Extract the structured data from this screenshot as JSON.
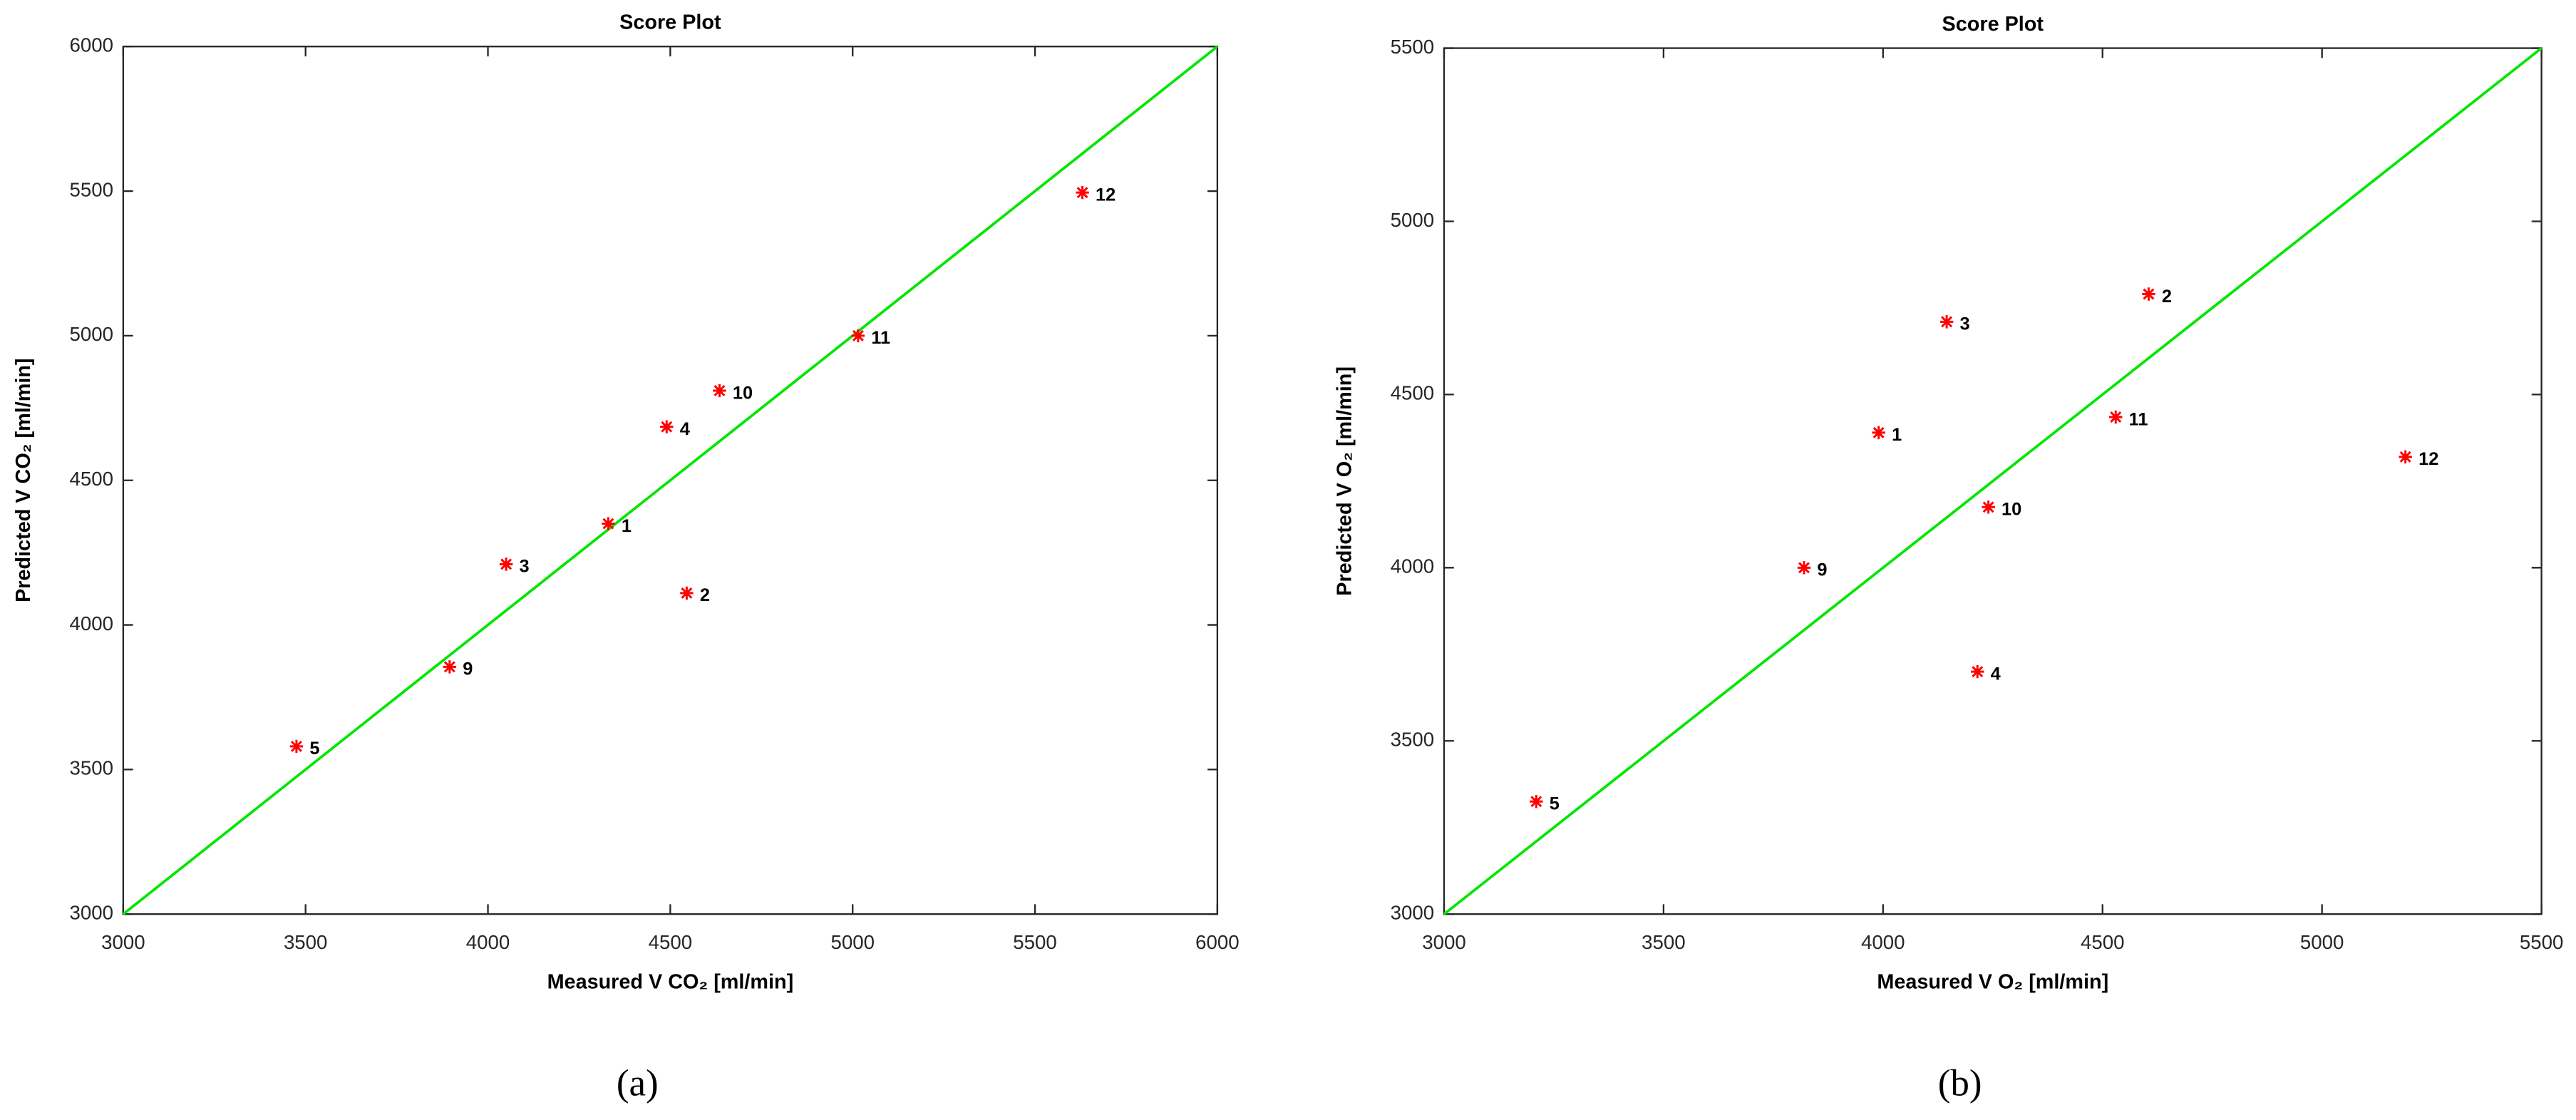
{
  "chart_data": [
    {
      "type": "scatter",
      "title": "Score Plot",
      "x_label": "Measured V CO₂ [ml/min]",
      "y_label": "Predicted V CO₂ [ml/min]",
      "caption": "(a)",
      "xlim": [
        3000,
        6000
      ],
      "ylim": [
        3000,
        6000
      ],
      "xticks": [
        3000,
        3500,
        4000,
        4500,
        5000,
        5500,
        6000
      ],
      "yticks": [
        3000,
        3500,
        4000,
        4500,
        5000,
        5500,
        6000
      ],
      "series": [
        {
          "color": "#ff0000",
          "point_labels": [
            "1",
            "2",
            "3",
            "4",
            "5",
            "9",
            "10",
            "11",
            "12"
          ],
          "x": [
            4330,
            4545,
            4050,
            4490,
            3475,
            3895,
            4635,
            5015,
            5630
          ],
          "y": [
            4350,
            4110,
            4210,
            4685,
            3580,
            3855,
            4810,
            5000,
            5495
          ]
        }
      ],
      "reference_line": {
        "color": "#00e600",
        "x": [
          3000,
          6000
        ],
        "y": [
          3000,
          6000
        ]
      }
    },
    {
      "type": "scatter",
      "title": "Score Plot",
      "x_label": "Measured V O₂ [ml/min]",
      "y_label": "Predicted V O₂ [ml/min]",
      "caption": "(b)",
      "xlim": [
        3000,
        5500
      ],
      "ylim": [
        3000,
        5500
      ],
      "xticks": [
        3000,
        3500,
        4000,
        4500,
        5000,
        5500
      ],
      "yticks": [
        3000,
        3500,
        4000,
        4500,
        5000,
        5500
      ],
      "series": [
        {
          "color": "#ff0000",
          "point_labels": [
            "1",
            "2",
            "3",
            "4",
            "5",
            "9",
            "10",
            "11",
            "12"
          ],
          "x": [
            3990,
            4605,
            4145,
            4215,
            3210,
            3820,
            4240,
            4530,
            5190
          ],
          "y": [
            4390,
            4790,
            4710,
            3700,
            3325,
            4000,
            4175,
            4435,
            4320
          ]
        }
      ],
      "reference_line": {
        "color": "#00e600",
        "x": [
          3000,
          5500
        ],
        "y": [
          3000,
          5500
        ]
      }
    }
  ]
}
